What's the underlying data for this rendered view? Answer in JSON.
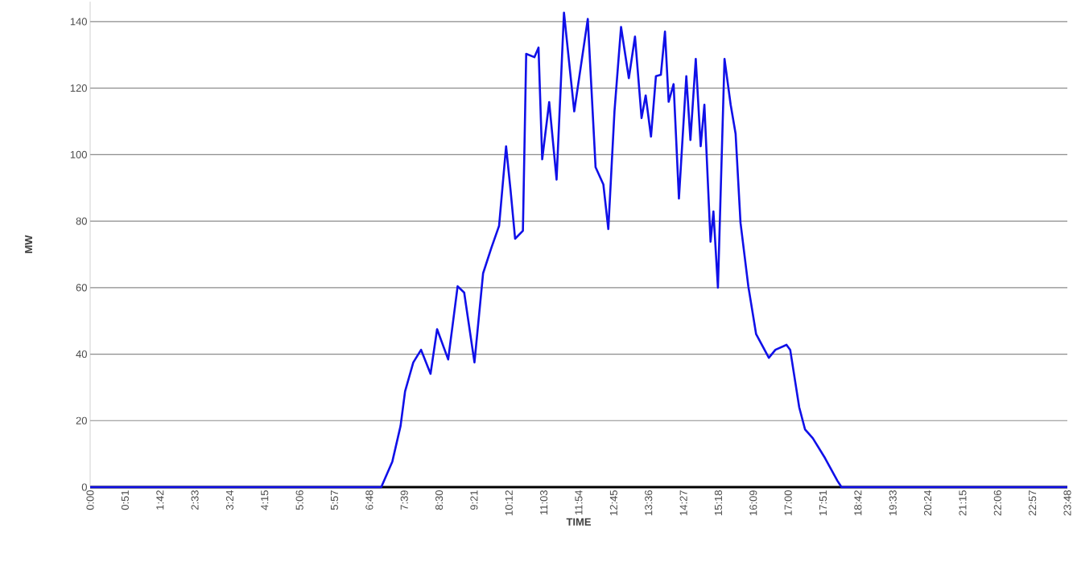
{
  "chart_data": {
    "type": "line",
    "xlabel": "TIME",
    "ylabel": "MW",
    "xlim": [
      0,
      23.8
    ],
    "ylim": [
      0,
      146
    ],
    "yticks": [
      0,
      20,
      40,
      60,
      80,
      100,
      120,
      140
    ],
    "xticks": [
      {
        "value": 0,
        "label": "0:00"
      },
      {
        "value": 0.85,
        "label": "0:51"
      },
      {
        "value": 1.7,
        "label": "1:42"
      },
      {
        "value": 2.55,
        "label": "2:33"
      },
      {
        "value": 3.4,
        "label": "3:24"
      },
      {
        "value": 4.25,
        "label": "4:15"
      },
      {
        "value": 5.1,
        "label": "5:06"
      },
      {
        "value": 5.95,
        "label": "5:57"
      },
      {
        "value": 6.8,
        "label": "6:48"
      },
      {
        "value": 7.65,
        "label": "7:39"
      },
      {
        "value": 8.5,
        "label": "8:30"
      },
      {
        "value": 9.35,
        "label": "9:21"
      },
      {
        "value": 10.2,
        "label": "10:12"
      },
      {
        "value": 11.05,
        "label": "11:03"
      },
      {
        "value": 11.9,
        "label": "11:54"
      },
      {
        "value": 12.75,
        "label": "12:45"
      },
      {
        "value": 13.6,
        "label": "13:36"
      },
      {
        "value": 14.45,
        "label": "14:27"
      },
      {
        "value": 15.3,
        "label": "15:18"
      },
      {
        "value": 16.15,
        "label": "16:09"
      },
      {
        "value": 17.0,
        "label": "17:00"
      },
      {
        "value": 17.85,
        "label": "17:51"
      },
      {
        "value": 18.7,
        "label": "18:42"
      },
      {
        "value": 19.55,
        "label": "19:33"
      },
      {
        "value": 20.4,
        "label": "20:24"
      },
      {
        "value": 21.25,
        "label": "21:15"
      },
      {
        "value": 22.1,
        "label": "22:06"
      },
      {
        "value": 22.95,
        "label": "22:57"
      },
      {
        "value": 23.8,
        "label": "23:48"
      }
    ],
    "grid": "y",
    "marker": "none",
    "line_style": "solid",
    "series": [
      {
        "color": "#1010e8",
        "x": [
          0,
          7.09,
          7.36,
          7.56,
          7.67,
          7.87,
          8.06,
          8.29,
          8.45,
          8.72,
          8.95,
          9.11,
          9.36,
          9.57,
          9.77,
          9.96,
          10.13,
          10.24,
          10.35,
          10.54,
          10.62,
          10.82,
          10.92,
          11.01,
          11.18,
          11.36,
          11.54,
          11.79,
          12.12,
          12.31,
          12.5,
          12.62,
          12.77,
          12.93,
          13.12,
          13.27,
          13.43,
          13.53,
          13.66,
          13.78,
          13.9,
          14.0,
          14.09,
          14.21,
          14.34,
          14.52,
          14.62,
          14.75,
          14.87,
          14.96,
          15.11,
          15.18,
          15.29,
          15.45,
          15.6,
          15.72,
          15.84,
          16.03,
          16.22,
          16.53,
          16.69,
          16.96,
          17.05,
          17.27,
          17.41,
          17.6,
          17.9,
          18.2,
          18.3,
          23.8
        ],
        "values": [
          0,
          0,
          7.7,
          18.4,
          28.8,
          37.5,
          41.3,
          34.1,
          47.5,
          38.4,
          60.4,
          58.5,
          37.5,
          64.3,
          71.9,
          78.6,
          102.5,
          89.2,
          74.7,
          77.1,
          130.3,
          129.3,
          132.2,
          98.6,
          115.8,
          92.5,
          142.7,
          113,
          140.8,
          96.2,
          91,
          77.6,
          113,
          138.4,
          123,
          135.5,
          111,
          117.8,
          105.4,
          123.6,
          124,
          137,
          115.9,
          121.2,
          86.8,
          123.6,
          104.4,
          128.8,
          102.5,
          115,
          73.8,
          82.9,
          60,
          128.8,
          115,
          106.3,
          79.5,
          60.4,
          46,
          38.9,
          41.3,
          42.8,
          41.3,
          24,
          17.4,
          14.7,
          8.7,
          1.9,
          0,
          0
        ]
      }
    ]
  }
}
